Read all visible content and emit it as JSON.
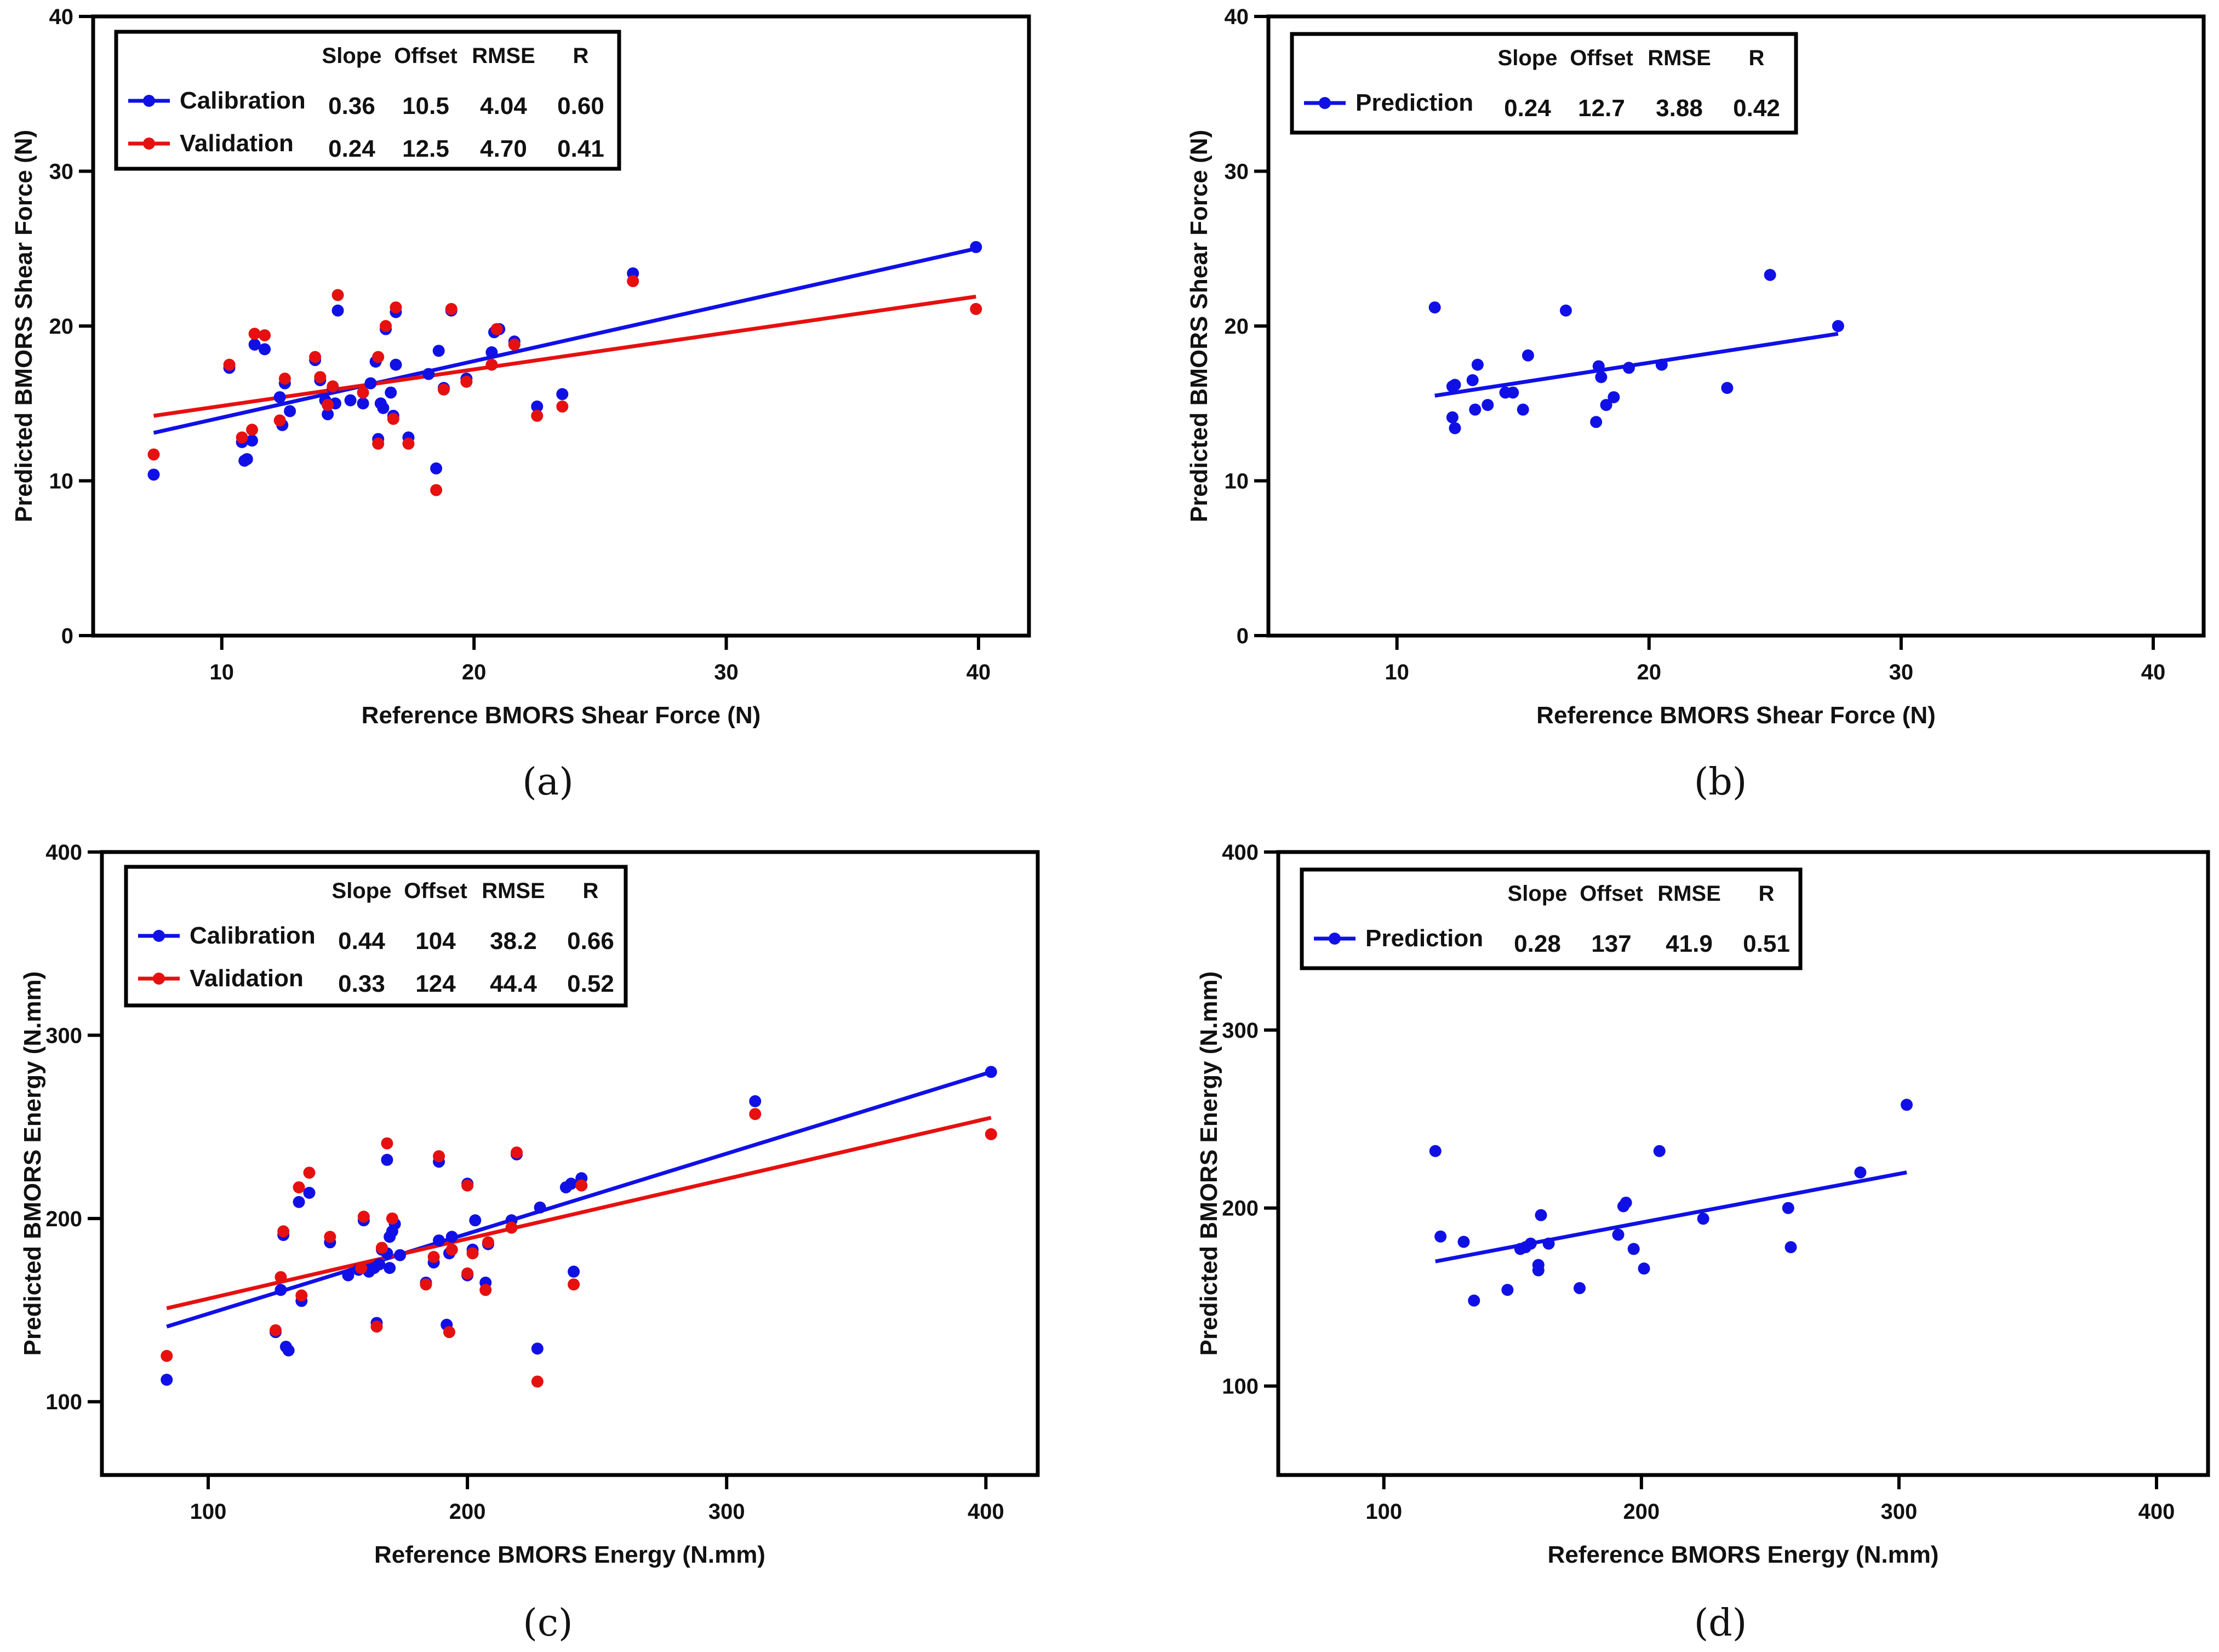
{
  "colors": {
    "calibration": "#1010e6",
    "validation": "#e61010",
    "prediction": "#1010e6"
  },
  "legend_headers": [
    "Slope",
    "Offset",
    "RMSE",
    "R"
  ],
  "chart_data": [
    {
      "id": "a",
      "type": "scatter",
      "panel_label": "(a)",
      "xlabel": "Reference BMORS Shear Force (N)",
      "ylabel": "Predicted BMORS Shear Force (N)",
      "xlim": [
        4.9,
        42
      ],
      "ylim": [
        0,
        40
      ],
      "xticks": [
        10,
        20,
        30,
        40
      ],
      "yticks": [
        0,
        10,
        20,
        30,
        40
      ],
      "legend_position": "top-left",
      "series": [
        {
          "name": "Calibration",
          "color_key": "calibration",
          "stats": [
            "0.36",
            "10.5",
            "4.04",
            "0.60"
          ],
          "fit": [
            [
              7.3,
              13.1
            ],
            [
              39.9,
              25.0
            ]
          ],
          "points": [
            [
              7.3,
              10.4
            ],
            [
              10.3,
              17.3
            ],
            [
              10.8,
              12.5
            ],
            [
              10.9,
              11.3
            ],
            [
              11.0,
              11.4
            ],
            [
              11.2,
              12.6
            ],
            [
              11.3,
              18.8
            ],
            [
              11.7,
              18.5
            ],
            [
              12.3,
              15.4
            ],
            [
              12.4,
              13.6
            ],
            [
              12.5,
              16.3
            ],
            [
              12.7,
              14.5
            ],
            [
              13.7,
              17.8
            ],
            [
              13.9,
              16.5
            ],
            [
              14.1,
              15.2
            ],
            [
              14.2,
              14.3
            ],
            [
              14.4,
              16.0
            ],
            [
              14.5,
              15.0
            ],
            [
              14.6,
              21.0
            ],
            [
              15.1,
              15.2
            ],
            [
              15.6,
              15.0
            ],
            [
              15.9,
              16.3
            ],
            [
              16.1,
              17.7
            ],
            [
              16.2,
              12.7
            ],
            [
              16.3,
              15.0
            ],
            [
              16.4,
              14.7
            ],
            [
              16.5,
              19.8
            ],
            [
              16.7,
              15.7
            ],
            [
              16.8,
              14.2
            ],
            [
              16.9,
              17.5
            ],
            [
              16.9,
              20.9
            ],
            [
              17.4,
              12.8
            ],
            [
              18.2,
              16.9
            ],
            [
              18.5,
              10.8
            ],
            [
              18.6,
              18.4
            ],
            [
              18.8,
              16.0
            ],
            [
              19.1,
              21.0
            ],
            [
              19.7,
              16.6
            ],
            [
              20.7,
              18.3
            ],
            [
              20.8,
              19.6
            ],
            [
              21.0,
              19.8
            ],
            [
              21.6,
              19.0
            ],
            [
              22.5,
              14.8
            ],
            [
              23.5,
              15.6
            ],
            [
              26.3,
              23.4
            ],
            [
              39.9,
              25.1
            ]
          ]
        },
        {
          "name": "Validation",
          "color_key": "validation",
          "stats": [
            "0.24",
            "12.5",
            "4.70",
            "0.41"
          ],
          "fit": [
            [
              7.3,
              14.2
            ],
            [
              39.9,
              21.9
            ]
          ],
          "points": [
            [
              7.3,
              11.7
            ],
            [
              10.3,
              17.5
            ],
            [
              10.8,
              12.8
            ],
            [
              11.2,
              13.3
            ],
            [
              11.3,
              19.5
            ],
            [
              11.7,
              19.4
            ],
            [
              12.3,
              13.9
            ],
            [
              12.5,
              16.6
            ],
            [
              13.7,
              18.0
            ],
            [
              13.9,
              16.7
            ],
            [
              14.2,
              14.9
            ],
            [
              14.4,
              16.1
            ],
            [
              14.6,
              22.0
            ],
            [
              15.6,
              15.7
            ],
            [
              16.2,
              18.0
            ],
            [
              16.2,
              12.4
            ],
            [
              16.5,
              20.0
            ],
            [
              16.8,
              14.0
            ],
            [
              16.9,
              21.2
            ],
            [
              17.4,
              12.4
            ],
            [
              18.5,
              9.4
            ],
            [
              18.8,
              15.9
            ],
            [
              19.1,
              21.1
            ],
            [
              19.7,
              16.4
            ],
            [
              20.7,
              17.5
            ],
            [
              20.9,
              19.8
            ],
            [
              21.6,
              18.8
            ],
            [
              22.5,
              14.2
            ],
            [
              23.5,
              14.8
            ],
            [
              26.3,
              22.9
            ],
            [
              39.9,
              21.1
            ]
          ]
        }
      ]
    },
    {
      "id": "b",
      "type": "scatter",
      "panel_label": "(b)",
      "xlabel": "Reference BMORS Shear Force (N)",
      "ylabel": "Predicted BMORS Shear Force (N)",
      "xlim": [
        4.9,
        42
      ],
      "ylim": [
        0,
        40
      ],
      "xticks": [
        10,
        20,
        30,
        40
      ],
      "yticks": [
        0,
        10,
        20,
        30,
        40
      ],
      "legend_position": "top-left",
      "series": [
        {
          "name": "Prediction",
          "color_key": "prediction",
          "stats": [
            "0.24",
            "12.7",
            "3.88",
            "0.42"
          ],
          "fit": [
            [
              11.5,
              15.5
            ],
            [
              27.5,
              19.5
            ]
          ],
          "points": [
            [
              11.5,
              21.2
            ],
            [
              12.2,
              14.1
            ],
            [
              12.2,
              16.1
            ],
            [
              12.3,
              13.4
            ],
            [
              12.3,
              16.2
            ],
            [
              13.0,
              16.5
            ],
            [
              13.1,
              14.6
            ],
            [
              13.2,
              17.5
            ],
            [
              13.6,
              14.9
            ],
            [
              14.3,
              15.7
            ],
            [
              14.6,
              15.7
            ],
            [
              15.0,
              14.6
            ],
            [
              15.2,
              18.1
            ],
            [
              16.7,
              21.0
            ],
            [
              17.9,
              13.8
            ],
            [
              18.0,
              17.4
            ],
            [
              18.1,
              16.7
            ],
            [
              18.3,
              14.9
            ],
            [
              18.6,
              15.4
            ],
            [
              19.2,
              17.3
            ],
            [
              20.5,
              17.5
            ],
            [
              23.1,
              16.0
            ],
            [
              24.8,
              23.3
            ],
            [
              27.5,
              20.0
            ]
          ]
        }
      ]
    },
    {
      "id": "c",
      "type": "scatter",
      "panel_label": "(c)",
      "xlabel": "Reference BMORS Energy (N.mm)",
      "ylabel": "Predicted BMORS Energy (N.mm)",
      "xlim": [
        59,
        420
      ],
      "ylim": [
        60,
        400
      ],
      "xticks": [
        100,
        200,
        300,
        400
      ],
      "yticks": [
        100,
        200,
        300,
        400
      ],
      "legend_position": "top-left",
      "series": [
        {
          "name": "Calibration",
          "color_key": "calibration",
          "stats": [
            "0.44",
            "104",
            "38.2",
            "0.66"
          ],
          "fit": [
            [
              84,
              141
            ],
            [
              402,
              280
            ]
          ],
          "points": [
            [
              84,
              112
            ],
            [
              126,
              138
            ],
            [
              128,
              161
            ],
            [
              129,
              191
            ],
            [
              130,
              130
            ],
            [
              131,
              128
            ],
            [
              135,
              209
            ],
            [
              136,
              155
            ],
            [
              139,
              214
            ],
            [
              147,
              187
            ],
            [
              154,
              169
            ],
            [
              158,
              172
            ],
            [
              160,
              199
            ],
            [
              162,
              171
            ],
            [
              164,
              173
            ],
            [
              165,
              143
            ],
            [
              166,
              175
            ],
            [
              167,
              183
            ],
            [
              169,
              181
            ],
            [
              169,
              232
            ],
            [
              170,
              190
            ],
            [
              170,
              173
            ],
            [
              171,
              193
            ],
            [
              172,
              197
            ],
            [
              174,
              180
            ],
            [
              184,
              165
            ],
            [
              187,
              176
            ],
            [
              189,
              188
            ],
            [
              189,
              231
            ],
            [
              192,
              142
            ],
            [
              193,
              181
            ],
            [
              194,
              190
            ],
            [
              200,
              169
            ],
            [
              200,
              219
            ],
            [
              202,
              183
            ],
            [
              203,
              199
            ],
            [
              207,
              165
            ],
            [
              208,
              186
            ],
            [
              217,
              199
            ],
            [
              219,
              235
            ],
            [
              228,
              206
            ],
            [
              227,
              129
            ],
            [
              238,
              217
            ],
            [
              240,
              219
            ],
            [
              241,
              171
            ],
            [
              244,
              222
            ],
            [
              311,
              264
            ],
            [
              402,
              280
            ]
          ]
        },
        {
          "name": "Validation",
          "color_key": "validation",
          "stats": [
            "0.33",
            "124",
            "44.4",
            "0.52"
          ],
          "fit": [
            [
              84,
              151
            ],
            [
              402,
              255
            ]
          ],
          "points": [
            [
              84,
              125
            ],
            [
              126,
              139
            ],
            [
              128,
              168
            ],
            [
              129,
              193
            ],
            [
              135,
              217
            ],
            [
              136,
              158
            ],
            [
              139,
              225
            ],
            [
              147,
              190
            ],
            [
              159,
              173
            ],
            [
              160,
              201
            ],
            [
              165,
              141
            ],
            [
              167,
              184
            ],
            [
              169,
              241
            ],
            [
              171,
              200
            ],
            [
              184,
              164
            ],
            [
              187,
              179
            ],
            [
              189,
              234
            ],
            [
              193,
              138
            ],
            [
              194,
              183
            ],
            [
              200,
              170
            ],
            [
              200,
              218
            ],
            [
              202,
              181
            ],
            [
              207,
              161
            ],
            [
              208,
              187
            ],
            [
              217,
              195
            ],
            [
              219,
              236
            ],
            [
              227,
              111
            ],
            [
              241,
              164
            ],
            [
              244,
              218
            ],
            [
              311,
              257
            ],
            [
              402,
              246
            ]
          ]
        }
      ]
    },
    {
      "id": "d",
      "type": "scatter",
      "panel_label": "(d)",
      "xlabel": "Reference BMORS Energy (N.mm)",
      "ylabel": "Predicted BMORS Energy (N.mm)",
      "xlim": [
        59,
        420
      ],
      "ylim": [
        50,
        400
      ],
      "xticks": [
        100,
        200,
        300,
        400
      ],
      "yticks": [
        100,
        200,
        300,
        400
      ],
      "legend_position": "top-left",
      "series": [
        {
          "name": "Prediction",
          "color_key": "prediction",
          "stats": [
            "0.28",
            "137",
            "41.9",
            "0.51"
          ],
          "fit": [
            [
              120,
              170
            ],
            [
              303,
              220
            ]
          ],
          "points": [
            [
              120,
              232
            ],
            [
              122,
              184
            ],
            [
              131,
              181
            ],
            [
              135,
              148
            ],
            [
              148,
              154
            ],
            [
              153,
              177
            ],
            [
              155,
              178
            ],
            [
              157,
              180
            ],
            [
              160,
              168
            ],
            [
              160,
              165
            ],
            [
              161,
              196
            ],
            [
              164,
              180
            ],
            [
              176,
              155
            ],
            [
              191,
              185
            ],
            [
              193,
              201
            ],
            [
              194,
              203
            ],
            [
              197,
              177
            ],
            [
              201,
              166
            ],
            [
              207,
              232
            ],
            [
              224,
              194
            ],
            [
              257,
              200
            ],
            [
              258,
              178
            ],
            [
              285,
              220
            ],
            [
              303,
              258
            ]
          ]
        }
      ]
    }
  ]
}
